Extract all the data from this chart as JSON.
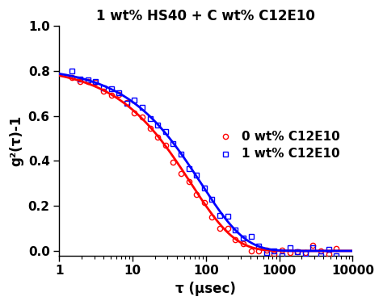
{
  "title": "1 wt% HS40 + C wt% C12E10",
  "xlabel": "τ (μsec)",
  "ylabel": "g²(τ)-1",
  "xlim": [
    1,
    10000
  ],
  "ylim": [
    -0.02,
    1.0
  ],
  "yticks": [
    0.0,
    0.2,
    0.4,
    0.6,
    0.8,
    1.0
  ],
  "xticks": [
    1,
    10,
    100,
    1000,
    10000
  ],
  "legend_labels": [
    "0 wt% C12E10",
    "1 wt% C12E10"
  ],
  "red_color": "#FF0000",
  "blue_color": "#0000FF",
  "red_A": 0.82,
  "red_tau0": 62.0,
  "red_alpha": 0.72,
  "blue_A": 0.82,
  "blue_tau0": 85.0,
  "blue_alpha": 0.72,
  "background_color": "#ffffff",
  "title_fontsize": 12,
  "label_fontsize": 12,
  "tick_fontsize": 11
}
